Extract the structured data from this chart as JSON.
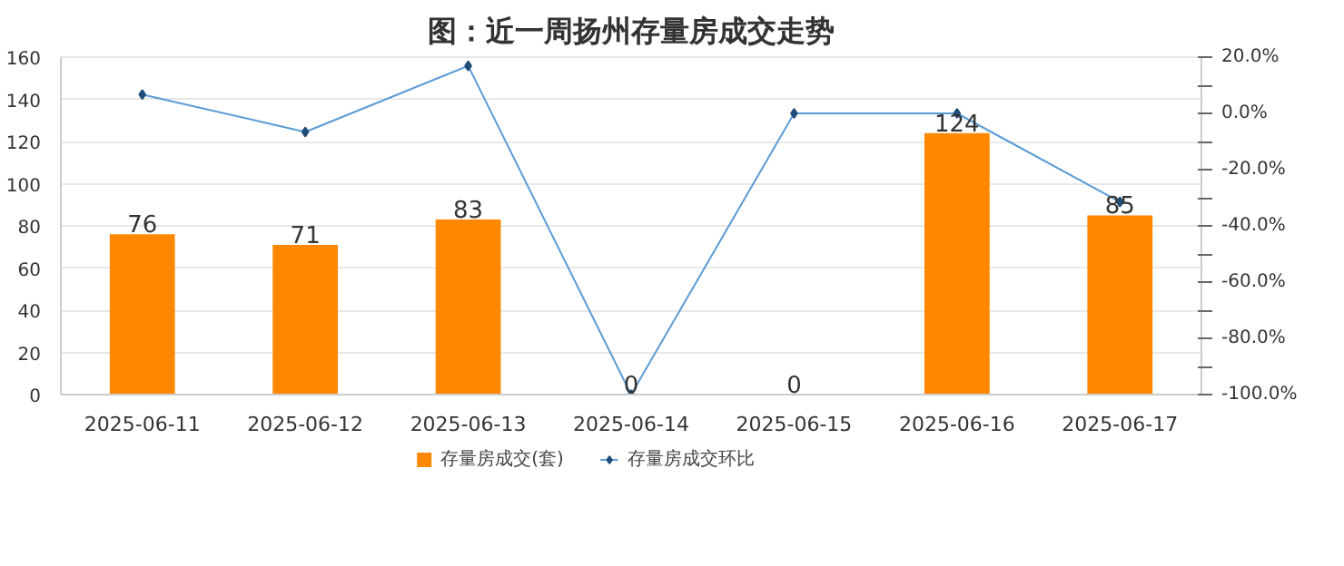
{
  "chart_data": {
    "type": "bar",
    "title": "图：近一周扬州存量房成交走势",
    "categories": [
      "2025-06-11",
      "2025-06-12",
      "2025-06-13",
      "2025-06-14",
      "2025-06-15",
      "2025-06-16",
      "2025-06-17"
    ],
    "series": [
      {
        "name": "存量房成交(套)",
        "color": "#ff8800",
        "values": [
          76,
          71,
          83,
          0,
          0,
          124,
          85
        ],
        "value_labels": [
          "76",
          "71",
          "83",
          "0",
          "0",
          "124",
          "85"
        ]
      },
      {
        "name": "存量房成交环比",
        "type": "line",
        "axis": "y2",
        "color": "#5b9bd5",
        "marker": "diamond",
        "values": [
          6.7,
          -6.6,
          16.9,
          -100,
          0,
          0,
          -31.5
        ]
      }
    ],
    "ylim": [
      0,
      160
    ],
    "yticks": [
      0,
      20,
      40,
      60,
      80,
      100,
      120,
      140,
      160
    ],
    "y2lim": [
      -100,
      20
    ],
    "y2ticks": [
      {
        "value": 20,
        "label": "20.0%"
      },
      {
        "value": 10,
        "label": null
      },
      {
        "value": 0,
        "label": "0.0%"
      },
      {
        "value": -10,
        "label": null
      },
      {
        "value": -20,
        "label": "-20.0%"
      },
      {
        "value": -30,
        "label": null
      },
      {
        "value": -40,
        "label": "-40.0%"
      },
      {
        "value": -50,
        "label": null
      },
      {
        "value": -60,
        "label": "-60.0%"
      },
      {
        "value": -70,
        "label": null
      },
      {
        "value": -80,
        "label": "-80.0%"
      },
      {
        "value": -90,
        "label": null
      },
      {
        "value": -100,
        "label": "-100.0%"
      }
    ],
    "grid": "y",
    "legend": "bottom"
  }
}
